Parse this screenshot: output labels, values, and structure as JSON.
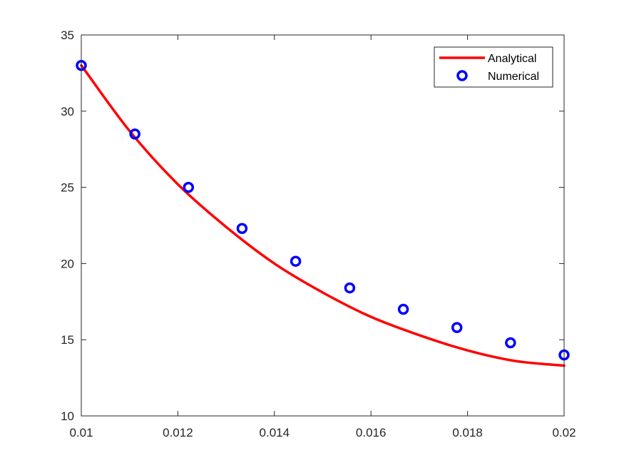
{
  "chart_data": {
    "type": "line",
    "title": "",
    "xlabel": "",
    "ylabel": "",
    "xlim": [
      0.01,
      0.02
    ],
    "ylim": [
      10,
      35
    ],
    "x_ticks": [
      "0.01",
      "0.012",
      "0.014",
      "0.016",
      "0.018",
      "0.02"
    ],
    "x_tick_values": [
      0.01,
      0.012,
      0.014,
      0.016,
      0.018,
      0.02
    ],
    "y_ticks": [
      "10",
      "15",
      "20",
      "25",
      "30",
      "35"
    ],
    "y_tick_values": [
      10,
      15,
      20,
      25,
      30,
      35
    ],
    "grid": false,
    "legend_position": "top-right",
    "series": [
      {
        "name": "Analytical",
        "style": "line",
        "color": "#ff0000",
        "x": [
          0.01,
          0.011,
          0.012,
          0.013,
          0.014,
          0.015,
          0.016,
          0.017,
          0.018,
          0.019,
          0.02
        ],
        "y": [
          33.0,
          28.7,
          25.2,
          22.4,
          20.0,
          18.1,
          16.5,
          15.3,
          14.3,
          13.6,
          13.3
        ]
      },
      {
        "name": "Numerical",
        "style": "markers",
        "marker": "circle",
        "color": "#0000ff",
        "x": [
          0.01,
          0.01111,
          0.01222,
          0.01333,
          0.01444,
          0.01556,
          0.01667,
          0.01778,
          0.01889,
          0.02
        ],
        "y": [
          33.0,
          28.5,
          25.0,
          22.3,
          20.15,
          18.4,
          17.0,
          15.8,
          14.8,
          14.0
        ]
      }
    ]
  }
}
